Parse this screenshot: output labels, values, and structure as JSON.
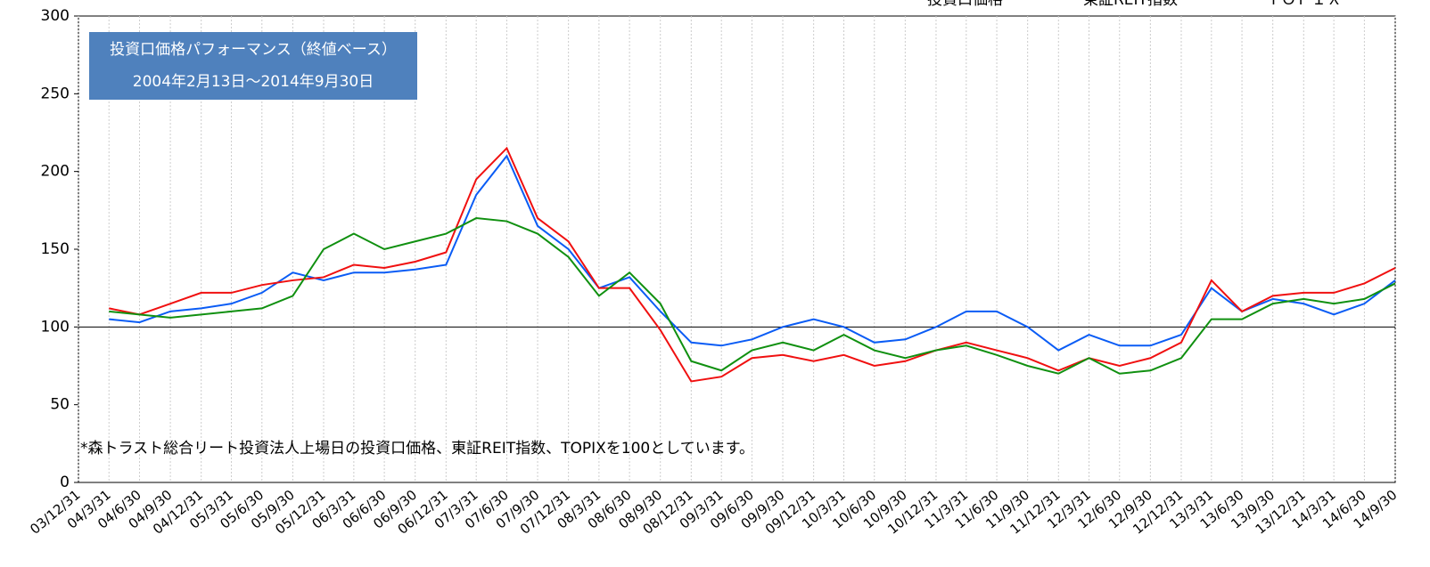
{
  "chart_data": {
    "type": "line",
    "title": "投資口価格パフォーマンス（終値ベース）",
    "subtitle": "2004年2月13日～2014年9月30日",
    "annotation": "*森トラスト総合リート投資法人上場日の投資口価格、東証REIT指数、TOPIXを100としています。",
    "x": [
      "03/12/31",
      "04/3/31",
      "04/6/30",
      "04/9/30",
      "04/12/31",
      "05/3/31",
      "05/6/30",
      "05/9/30",
      "05/12/31",
      "06/3/31",
      "06/6/30",
      "06/9/30",
      "06/12/31",
      "07/3/31",
      "07/6/30",
      "07/9/30",
      "07/12/31",
      "08/3/31",
      "08/6/30",
      "08/9/30",
      "08/12/31",
      "09/3/31",
      "09/6/30",
      "09/9/30",
      "09/12/31",
      "10/3/31",
      "10/6/30",
      "10/9/30",
      "10/12/31",
      "11/3/31",
      "11/6/30",
      "11/9/30",
      "11/12/31",
      "12/3/31",
      "12/6/30",
      "12/9/30",
      "12/12/31",
      "13/3/31",
      "13/6/30",
      "13/9/30",
      "13/12/31",
      "14/3/31",
      "14/6/30",
      "14/9/30"
    ],
    "series": [
      {
        "name": "投資口価格",
        "color": "#0a5cf5",
        "values": [
          null,
          105,
          103,
          110,
          112,
          115,
          122,
          135,
          130,
          135,
          135,
          137,
          140,
          185,
          210,
          165,
          150,
          125,
          132,
          110,
          90,
          88,
          92,
          100,
          105,
          100,
          90,
          92,
          100,
          110,
          110,
          100,
          85,
          95,
          88,
          88,
          95,
          125,
          110,
          118,
          115,
          108,
          115,
          130
        ]
      },
      {
        "name": "東証REIT指数",
        "color": "#f01010",
        "values": [
          null,
          112,
          108,
          115,
          122,
          122,
          127,
          130,
          132,
          140,
          138,
          142,
          148,
          195,
          215,
          170,
          155,
          125,
          125,
          98,
          65,
          68,
          80,
          82,
          78,
          82,
          75,
          78,
          85,
          90,
          85,
          80,
          72,
          80,
          75,
          80,
          90,
          130,
          110,
          120,
          122,
          122,
          128,
          138
        ]
      },
      {
        "name": "ＴＯＰＩＸ",
        "color": "#109010",
        "values": [
          null,
          110,
          108,
          106,
          108,
          110,
          112,
          120,
          150,
          160,
          150,
          155,
          160,
          170,
          168,
          160,
          145,
          120,
          135,
          115,
          78,
          72,
          85,
          90,
          85,
          95,
          85,
          80,
          85,
          88,
          82,
          75,
          70,
          80,
          70,
          72,
          80,
          105,
          105,
          115,
          118,
          115,
          118,
          128
        ]
      }
    ],
    "ylim": [
      0,
      300
    ],
    "yticks": [
      0,
      50,
      100,
      150,
      200,
      250,
      300
    ],
    "reference_line": 100,
    "grid": true
  }
}
